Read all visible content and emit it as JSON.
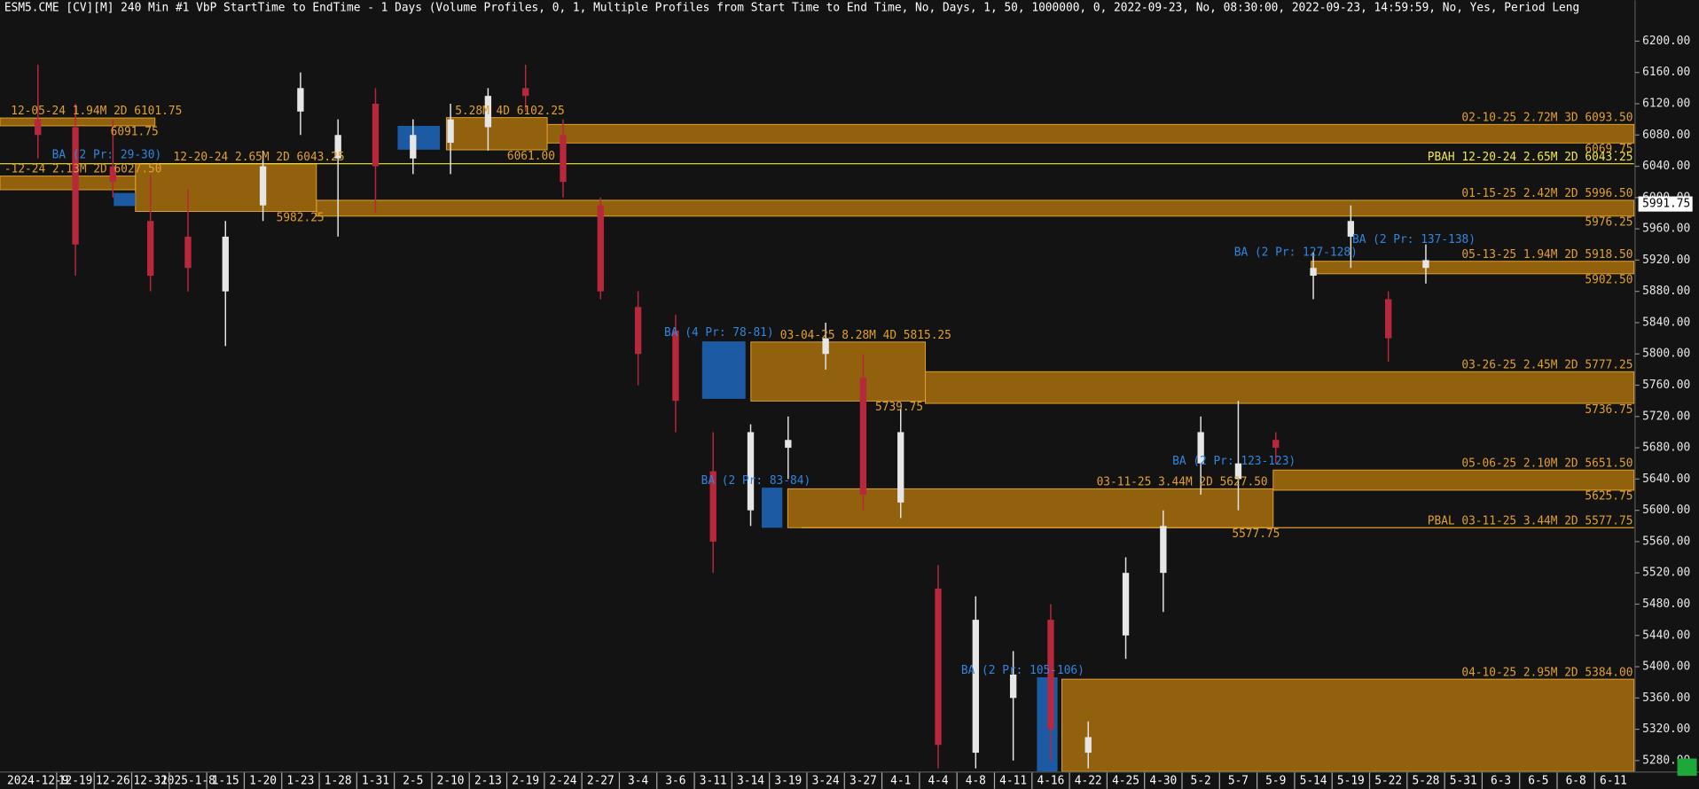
{
  "chart_data": {
    "type": "candlestick",
    "title": "ESM5.CME [CV][M]  240 Min  #1 VbP StartTime to EndTime - 1 Days   (Volume Profiles, 0, 1, Multiple Profiles from Start Time to End Time, No, Days, 1, 50, 1000000, 0, 2022-09-23, No, 08:30:00, 2022-09-23, 14:59:59, No, Yes, Period Leng",
    "categories": [
      "2024-12-9",
      "12-19",
      "12-26",
      "12-31",
      "2025-1-8",
      "1-15",
      "1-20",
      "1-23",
      "1-28",
      "1-31",
      "2-5",
      "2-10",
      "2-13",
      "2-19",
      "2-24",
      "2-27",
      "3-4",
      "3-6",
      "3-11",
      "3-14",
      "3-19",
      "3-24",
      "3-27",
      "4-1",
      "4-4",
      "4-8",
      "4-11",
      "4-16",
      "4-22",
      "4-25",
      "4-30",
      "5-2",
      "5-7",
      "5-9",
      "5-14",
      "5-19",
      "5-22",
      "5-28",
      "5-31",
      "6-3",
      "6-5",
      "6-8",
      "6-11"
    ],
    "candles": {
      "open": [
        6100,
        6090,
        6040,
        5970,
        5950,
        5880,
        5990,
        6110,
        6050,
        6120,
        6050,
        6070,
        6090,
        6140,
        6080,
        5990,
        5860,
        5830,
        5650,
        5600,
        5680,
        5800,
        5770,
        5610,
        5500,
        5290,
        5360,
        5460,
        5290,
        5440,
        5520,
        5660,
        5640,
        5690,
        5900,
        5950,
        5870,
        5910,
        null,
        null,
        null,
        null,
        null
      ],
      "high": [
        6170,
        6120,
        6100,
        6030,
        6010,
        5970,
        6060,
        6160,
        6100,
        6140,
        6100,
        6120,
        6140,
        6170,
        6100,
        6000,
        5880,
        5850,
        5700,
        5710,
        5720,
        5840,
        5800,
        5730,
        5530,
        5490,
        5420,
        5480,
        5330,
        5540,
        5600,
        5720,
        5740,
        5700,
        5930,
        5990,
        5880,
        5940,
        null,
        null,
        null,
        null,
        null
      ],
      "low": [
        6050,
        5900,
        6000,
        5880,
        5880,
        5810,
        5970,
        6080,
        5950,
        5980,
        6030,
        6030,
        6060,
        6110,
        6000,
        5870,
        5760,
        5700,
        5520,
        5580,
        5640,
        5780,
        5600,
        5590,
        5270,
        5270,
        5280,
        5280,
        5270,
        5410,
        5470,
        5620,
        5600,
        5660,
        5870,
        5910,
        5790,
        5890,
        null,
        null,
        null,
        null,
        null
      ],
      "close": [
        6080,
        5940,
        6020,
        5900,
        5910,
        5950,
        6040,
        6140,
        6080,
        6040,
        6080,
        6100,
        6130,
        6130,
        6020,
        5880,
        5800,
        5740,
        5560,
        5700,
        5690,
        5820,
        5620,
        5700,
        5300,
        5460,
        5390,
        5320,
        5310,
        5520,
        5580,
        5700,
        5660,
        5680,
        5910,
        5970,
        5820,
        5920,
        null,
        null,
        null,
        null,
        null
      ]
    },
    "up_color": "#e6e6e6",
    "down_color": "#b8283c",
    "zone_color": "#a8700e",
    "ylim": [
      5266,
      6233
    ],
    "yticks": [
      {
        "value": 5280,
        "label": "5280.00"
      },
      {
        "value": 5320,
        "label": "5320.00"
      },
      {
        "value": 5360,
        "label": "5360.00"
      },
      {
        "value": 5400,
        "label": "5400.00"
      },
      {
        "value": 5440,
        "label": "5440.00"
      },
      {
        "value": 5480,
        "label": "5480.00"
      },
      {
        "value": 5520,
        "label": "5520.00"
      },
      {
        "value": 5560,
        "label": "5560.00"
      },
      {
        "value": 5600,
        "label": "5600.00"
      },
      {
        "value": 5640,
        "label": "5640.00"
      },
      {
        "value": 5680,
        "label": "5680.00"
      },
      {
        "value": 5720,
        "label": "5720.00"
      },
      {
        "value": 5760,
        "label": "5760.00"
      },
      {
        "value": 5800,
        "label": "5800.00"
      },
      {
        "value": 5840,
        "label": "5840.00"
      },
      {
        "value": 5880,
        "label": "5880.00"
      },
      {
        "value": 5920,
        "label": "5920.00"
      },
      {
        "value": 5960,
        "label": "5960.00"
      },
      {
        "value": 6000,
        "label": "6000.00"
      },
      {
        "value": 6040,
        "label": "6040.00"
      },
      {
        "value": 6080,
        "label": "6080.00"
      },
      {
        "value": 6120,
        "label": "6120.00"
      },
      {
        "value": 6160,
        "label": "6160.00"
      },
      {
        "value": 6200,
        "label": "6200.00"
      }
    ],
    "last_price": 5991.75,
    "zones": [
      {
        "label": "02-10-25 2.72M 3D 6093.50",
        "high": 6093.5,
        "low": {
          "value": 6069.75,
          "label": "6069.75"
        }
      },
      {
        "label": "01-15-25 2.42M 2D 5996.50",
        "high": 5996.5,
        "low": {
          "value": 5976.25,
          "label": "5976.25"
        }
      },
      {
        "label": "05-13-25 1.94M 2D 5918.50",
        "high": 5918.5,
        "low": {
          "value": 5902.5,
          "label": "5902.50"
        }
      },
      {
        "label": "03-26-25 2.45M 2D 5777.25",
        "high": 5777.25,
        "low": {
          "value": 5736.75,
          "label": "5736.75"
        }
      },
      {
        "label": "05-06-25 2.10M 2D 5651.50",
        "high": 5651.5,
        "low": {
          "value": 5625.75,
          "label": "5625.75"
        }
      },
      {
        "label": "04-10-25 2.95M 2D 5384.00",
        "high": 5384
      },
      {
        "label": "03-04-25 8.28M 4D 5815.25",
        "high": 5815.25,
        "low": {
          "value": 5739.75,
          "label": "5739.75"
        }
      },
      {
        "label": "03-11-25 3.44M 2D 5627.50",
        "high": 5627.5,
        "low": {
          "value": 5577.75,
          "label": "5577.75"
        }
      },
      {
        "label": "12-20-24 2.65M 2D 6043.25",
        "high": 6043.25,
        "low": {
          "value": 5982.25,
          "label": "5982.25"
        }
      },
      {
        "label": "12-05-24 1.94M 2D 6101.75",
        "high": 6101.75,
        "low": {
          "value": 6091.75,
          "label": "6091.75"
        }
      },
      {
        "label": "-12-24 2.13M 2D 6027.50",
        "high": 6027.5,
        "low": 6010
      },
      {
        "label": "5.28M 4D 6102.25",
        "high": 6102.25,
        "low": {
          "value": 6061.0,
          "label": "6061.00"
        }
      }
    ],
    "lines": [
      {
        "label": "PBAH 12-20-24 2.65M 2D 6043.25",
        "value": 6043.25,
        "color": "#f2e640"
      },
      {
        "label": "PBAL 03-11-25 3.44M 2D 5577.75",
        "value": 5577.75,
        "color": "#e0a030"
      }
    ],
    "annotations": [
      "BA (2 Pr: 127-128)",
      "BA (2 Pr: 137-138)",
      "BA (4 Pr: 78-81)",
      "BA (2 Pr: 83-84)",
      "BA (2 Pr: 123-123)",
      "BA (2 Pr: 105-106)",
      "BA (2 Pr: 29-30)"
    ]
  }
}
